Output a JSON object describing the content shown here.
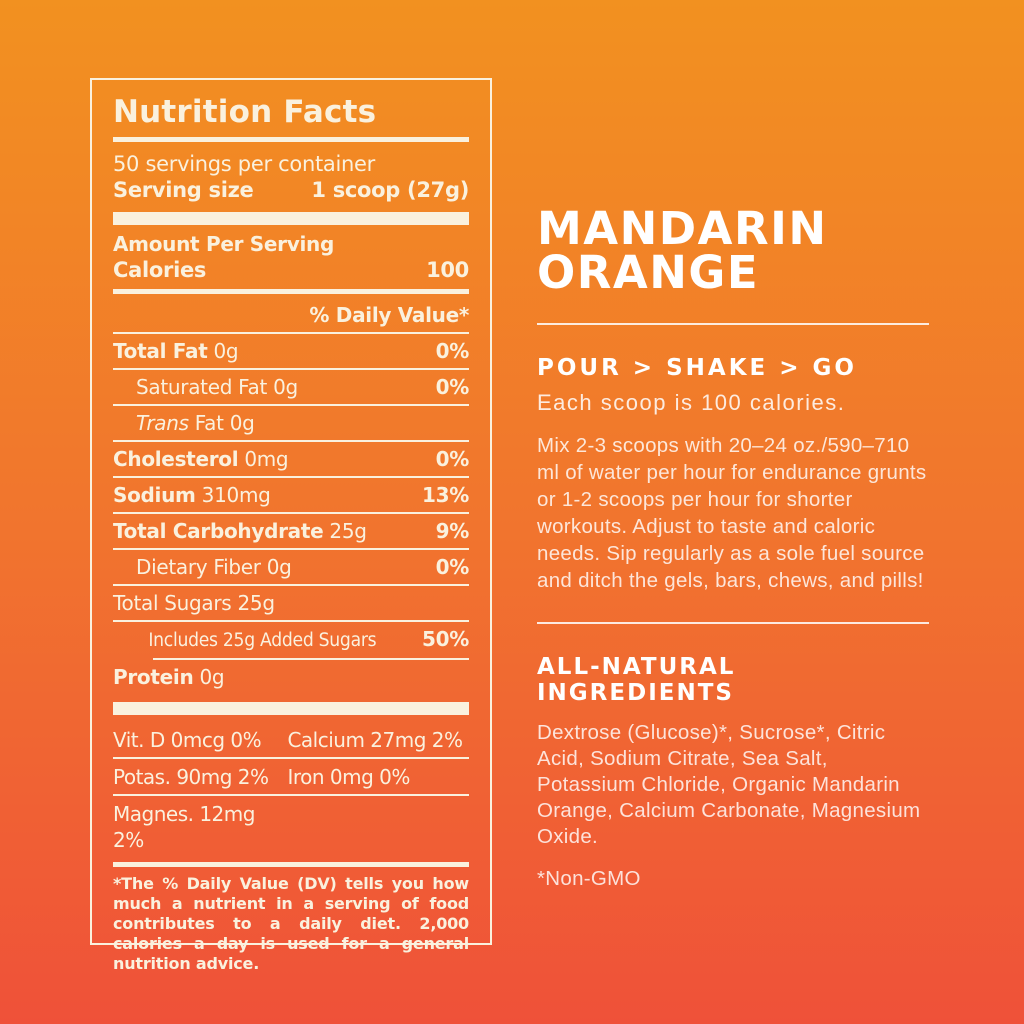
{
  "colors": {
    "background_top": "#F29120",
    "background_bottom": "#EF5139",
    "panel_text": "#FAF1DE",
    "heading_text": "#FFFFFF"
  },
  "nutrition_panel": {
    "title": "Nutrition Facts",
    "servings_per_container": "50 servings per container",
    "serving_size_label": "Serving size",
    "serving_size_value": "1 scoop (27g)",
    "amount_per_serving": "Amount Per Serving",
    "calories_label": "Calories",
    "calories_value": "100",
    "daily_value_header": "% Daily Value*",
    "rows": [
      {
        "bold": "Total Fat",
        "text": " 0g",
        "value": "0%",
        "indent": 0,
        "rule_after": "full"
      },
      {
        "text": "Saturated Fat 0g",
        "value": "0%",
        "indent": 1,
        "rule_after": "full"
      },
      {
        "italic": "Trans",
        "text": " Fat 0g",
        "value": "",
        "indent": 1,
        "rule_after": "full"
      },
      {
        "bold": "Cholesterol",
        "text": " 0mg",
        "value": "0%",
        "indent": 0,
        "rule_after": "full"
      },
      {
        "bold": "Sodium",
        "text": " 310mg",
        "value": "13%",
        "indent": 0,
        "rule_after": "full"
      },
      {
        "bold": "Total Carbohydrate",
        "text": " 25g",
        "value": "9%",
        "indent": 0,
        "rule_after": "full"
      },
      {
        "text": "Dietary Fiber 0g",
        "value": "0%",
        "indent": 1,
        "rule_after": "full"
      },
      {
        "text": "Total Sugars 25g",
        "value": "",
        "indent": 0,
        "rule_after": "full"
      },
      {
        "text": "Includes 25g Added Sugars",
        "value": "50%",
        "indent": 2,
        "condensed": true,
        "rule_after": "indent"
      },
      {
        "bold": "Protein",
        "text": " 0g",
        "value": "",
        "indent": 0,
        "rule_after": "none"
      }
    ],
    "micronutrients": [
      [
        "Vit. D 0mcg 0%",
        "Calcium 27mg 2%"
      ],
      [
        "Potas.  90mg 2%",
        "Iron 0mg 0%"
      ],
      [
        "Magnes. 12mg 2%"
      ]
    ],
    "footnote": "*The % Daily Value (DV) tells you how much a nutrient in a serving of food contributes to a daily diet. 2,000 calories a day is used for a general nutrition advice."
  },
  "flavor_panel": {
    "title_line1": "MANDARIN",
    "title_line2": "ORANGE",
    "tagline": "POUR > SHAKE > GO",
    "subtagline": "Each scoop is 100 calories.",
    "instructions": "Mix 2-3 scoops with 20–24 oz./590–710 ml of water per hour for endurance grunts or 1-2 scoops per hour for shorter workouts. Adjust to taste and caloric needs. Sip regularly as a sole fuel source and ditch the gels, bars, chews, and pills!",
    "ingredients_heading": "ALL-NATURAL INGREDIENTS",
    "ingredients": "Dextrose (Glucose)*, Sucrose*, Citric Acid, Sodium Citrate, Sea Salt, Potassium Chloride, Organic Mandarin Orange, Calcium Carbonate, Magnesium Oxide.",
    "non_gmo": "*Non-GMO"
  }
}
